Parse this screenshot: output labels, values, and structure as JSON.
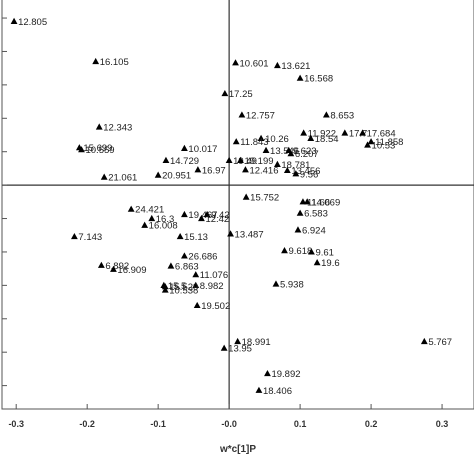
{
  "chart_data": {
    "type": "scatter",
    "title": "",
    "xlabel": "w*c[1]P",
    "ylabel": "",
    "xlim": [
      -0.32,
      0.345
    ],
    "ylim": [
      -0.335,
      0.28
    ],
    "xticks": [
      -0.3,
      -0.2,
      -0.1,
      0.0,
      0.1,
      0.2,
      0.3
    ],
    "xtick_labels": [
      "-0.3",
      "-0.2",
      "-0.1",
      "-0.0",
      "0.1",
      "0.2",
      "0.3"
    ],
    "yticks": [
      -0.3,
      -0.25,
      -0.2,
      -0.15,
      -0.1,
      -0.05,
      0.0,
      0.05,
      0.1,
      0.15,
      0.2,
      0.25
    ],
    "grid": false,
    "reference_lines": {
      "x": 0.0,
      "y": 0.0
    },
    "marker": "triangle",
    "marker_color": "#000000",
    "points": [
      {
        "label": "12.805",
        "x": -0.303,
        "y": 0.245
      },
      {
        "label": "16.105",
        "x": -0.188,
        "y": 0.185
      },
      {
        "label": "10.601",
        "x": 0.009,
        "y": 0.183
      },
      {
        "label": "13.621",
        "x": 0.068,
        "y": 0.179
      },
      {
        "label": "16.568",
        "x": 0.1,
        "y": 0.16
      },
      {
        "label": "17.25",
        "x": -0.006,
        "y": 0.137
      },
      {
        "label": "12.757",
        "x": 0.018,
        "y": 0.105
      },
      {
        "label": "8.653",
        "x": 0.137,
        "y": 0.105
      },
      {
        "label": "12.343",
        "x": -0.183,
        "y": 0.087
      },
      {
        "label": "11.922",
        "x": 0.105,
        "y": 0.078
      },
      {
        "label": "17.7",
        "x": 0.163,
        "y": 0.078
      },
      {
        "label": "17.684",
        "x": 0.188,
        "y": 0.078
      },
      {
        "label": "10.26",
        "x": 0.045,
        "y": 0.07
      },
      {
        "label": "18.54",
        "x": 0.115,
        "y": 0.07
      },
      {
        "label": "11.858",
        "x": 0.2,
        "y": 0.065
      },
      {
        "label": "11.843",
        "x": 0.01,
        "y": 0.065
      },
      {
        "label": "10.53",
        "x": 0.195,
        "y": 0.06
      },
      {
        "label": "15.699",
        "x": -0.211,
        "y": 0.056
      },
      {
        "label": "10.559",
        "x": -0.208,
        "y": 0.053
      },
      {
        "label": "10.017",
        "x": -0.063,
        "y": 0.055
      },
      {
        "label": "13.546",
        "x": 0.052,
        "y": 0.052
      },
      {
        "label": "9.623",
        "x": 0.084,
        "y": 0.052
      },
      {
        "label": "6.207",
        "x": 0.087,
        "y": 0.047
      },
      {
        "label": "14.729",
        "x": -0.089,
        "y": 0.037
      },
      {
        "label": "19.49",
        "x": 0.0,
        "y": 0.037
      },
      {
        "label": "19.199",
        "x": 0.016,
        "y": 0.037
      },
      {
        "label": "18.781",
        "x": 0.068,
        "y": 0.031
      },
      {
        "label": "12.416",
        "x": 0.023,
        "y": 0.023
      },
      {
        "label": "16.97",
        "x": -0.044,
        "y": 0.023
      },
      {
        "label": "13.456",
        "x": 0.082,
        "y": 0.022
      },
      {
        "label": "9.56",
        "x": 0.094,
        "y": 0.017
      },
      {
        "label": "21.061",
        "x": -0.176,
        "y": 0.012
      },
      {
        "label": "20.951",
        "x": -0.1,
        "y": 0.015
      },
      {
        "label": "15.752",
        "x": 0.024,
        "y": -0.018
      },
      {
        "label": "14.069",
        "x": 0.11,
        "y": -0.025
      },
      {
        "label": "11.66",
        "x": 0.104,
        "y": -0.025
      },
      {
        "label": "24.421",
        "x": -0.138,
        "y": -0.036
      },
      {
        "label": "19.467",
        "x": -0.063,
        "y": -0.044
      },
      {
        "label": "9.42",
        "x": -0.031,
        "y": -0.044
      },
      {
        "label": "6.583",
        "x": 0.1,
        "y": -0.042
      },
      {
        "label": "16.3",
        "x": -0.109,
        "y": -0.05
      },
      {
        "label": "12.42",
        "x": -0.039,
        "y": -0.05
      },
      {
        "label": "16.008",
        "x": -0.119,
        "y": -0.06
      },
      {
        "label": "6.924",
        "x": 0.097,
        "y": -0.067
      },
      {
        "label": "7.143",
        "x": -0.218,
        "y": -0.077
      },
      {
        "label": "15.13",
        "x": -0.069,
        "y": -0.077
      },
      {
        "label": "13.487",
        "x": 0.002,
        "y": -0.073
      },
      {
        "label": "26.686",
        "x": -0.063,
        "y": -0.106
      },
      {
        "label": "9.618",
        "x": 0.078,
        "y": -0.098
      },
      {
        "label": "9.61",
        "x": 0.116,
        "y": -0.1
      },
      {
        "label": "19.6",
        "x": 0.124,
        "y": -0.116
      },
      {
        "label": "6.863",
        "x": -0.082,
        "y": -0.121
      },
      {
        "label": "6.892",
        "x": -0.18,
        "y": -0.12
      },
      {
        "label": "16.909",
        "x": -0.163,
        "y": -0.126
      },
      {
        "label": "11.076",
        "x": -0.047,
        "y": -0.134
      },
      {
        "label": "5.938",
        "x": 0.066,
        "y": -0.148
      },
      {
        "label": "8.982",
        "x": -0.047,
        "y": -0.15
      },
      {
        "label": "15.5",
        "x": -0.092,
        "y": -0.15
      },
      {
        "label": "15.529",
        "x": -0.09,
        "y": -0.152
      },
      {
        "label": "10.538",
        "x": -0.09,
        "y": -0.157
      },
      {
        "label": "19.502",
        "x": -0.045,
        "y": -0.18
      },
      {
        "label": "5.767",
        "x": 0.275,
        "y": -0.234
      },
      {
        "label": "18.991",
        "x": 0.012,
        "y": -0.234
      },
      {
        "label": "13.95",
        "x": -0.007,
        "y": -0.244
      },
      {
        "label": "19.892",
        "x": 0.054,
        "y": -0.282
      },
      {
        "label": "18.406",
        "x": 0.042,
        "y": -0.307
      }
    ]
  }
}
